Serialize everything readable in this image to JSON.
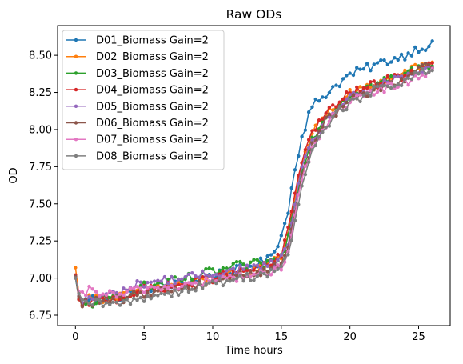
{
  "chart_data": {
    "type": "line",
    "title": "Raw ODs",
    "xlabel": "Time hours",
    "ylabel": "OD",
    "xlim": [
      -1.3,
      27.3
    ],
    "ylim": [
      6.68,
      8.7
    ],
    "xticks": [
      0,
      5,
      10,
      15,
      20,
      25
    ],
    "yticks": [
      6.75,
      7.0,
      7.25,
      7.5,
      7.75,
      8.0,
      8.25,
      8.5
    ],
    "ytick_labels": [
      "6.75",
      "7.00",
      "7.25",
      "7.50",
      "7.75",
      "8.00",
      "8.25",
      "8.50"
    ],
    "grid": false,
    "legend_position": "top-left",
    "x_start": 0,
    "x_end": 26,
    "sample_step": 0.25,
    "series": [
      {
        "name": "D01_Biomass Gain=2",
        "color": "#1f77b4",
        "anchors": [
          [
            0,
            7.0
          ],
          [
            0.3,
            6.82
          ],
          [
            1,
            6.86
          ],
          [
            3,
            6.87
          ],
          [
            5,
            6.93
          ],
          [
            8,
            6.97
          ],
          [
            10,
            7.02
          ],
          [
            12,
            7.06
          ],
          [
            14,
            7.12
          ],
          [
            15,
            7.28
          ],
          [
            15.5,
            7.45
          ],
          [
            16,
            7.75
          ],
          [
            16.5,
            7.95
          ],
          [
            17,
            8.1
          ],
          [
            17.5,
            8.18
          ],
          [
            18,
            8.22
          ],
          [
            19,
            8.3
          ],
          [
            20,
            8.37
          ],
          [
            22,
            8.44
          ],
          [
            24,
            8.5
          ],
          [
            25,
            8.55
          ],
          [
            26,
            8.57
          ]
        ],
        "noise": 0.03
      },
      {
        "name": "D02_Biomass Gain=2",
        "color": "#ff7f0e",
        "anchors": [
          [
            0,
            7.07
          ],
          [
            0.3,
            6.85
          ],
          [
            1,
            6.86
          ],
          [
            3,
            6.87
          ],
          [
            5,
            6.93
          ],
          [
            8,
            6.96
          ],
          [
            10,
            7.0
          ],
          [
            12,
            7.04
          ],
          [
            14,
            7.08
          ],
          [
            15,
            7.15
          ],
          [
            15.5,
            7.3
          ],
          [
            16,
            7.55
          ],
          [
            16.5,
            7.78
          ],
          [
            17,
            7.92
          ],
          [
            17.5,
            8.0
          ],
          [
            18,
            8.08
          ],
          [
            19,
            8.16
          ],
          [
            20,
            8.24
          ],
          [
            22,
            8.31
          ],
          [
            24,
            8.38
          ],
          [
            25,
            8.42
          ],
          [
            26,
            8.45
          ]
        ],
        "noise": 0.03
      },
      {
        "name": "D03_Biomass Gain=2",
        "color": "#2ca02c",
        "anchors": [
          [
            0,
            7.01
          ],
          [
            0.3,
            6.8
          ],
          [
            1,
            6.83
          ],
          [
            3,
            6.87
          ],
          [
            5,
            6.94
          ],
          [
            8,
            6.99
          ],
          [
            10,
            7.04
          ],
          [
            12,
            7.08
          ],
          [
            14,
            7.1
          ],
          [
            15,
            7.14
          ],
          [
            15.5,
            7.28
          ],
          [
            16,
            7.52
          ],
          [
            16.5,
            7.74
          ],
          [
            17,
            7.88
          ],
          [
            17.5,
            7.98
          ],
          [
            18,
            8.06
          ],
          [
            19,
            8.15
          ],
          [
            20,
            8.24
          ],
          [
            22,
            8.31
          ],
          [
            24,
            8.37
          ],
          [
            25,
            8.41
          ],
          [
            26,
            8.45
          ]
        ],
        "noise": 0.035
      },
      {
        "name": "D04_Biomass Gain=2",
        "color": "#d62728",
        "anchors": [
          [
            0,
            7.02
          ],
          [
            0.3,
            6.8
          ],
          [
            1,
            6.84
          ],
          [
            3,
            6.86
          ],
          [
            5,
            6.92
          ],
          [
            8,
            6.96
          ],
          [
            10,
            7.0
          ],
          [
            12,
            7.04
          ],
          [
            14,
            7.08
          ],
          [
            15,
            7.15
          ],
          [
            15.5,
            7.32
          ],
          [
            16,
            7.58
          ],
          [
            16.5,
            7.8
          ],
          [
            17,
            7.93
          ],
          [
            17.5,
            8.02
          ],
          [
            18,
            8.08
          ],
          [
            19,
            8.17
          ],
          [
            20,
            8.24
          ],
          [
            22,
            8.31
          ],
          [
            24,
            8.37
          ],
          [
            25,
            8.4
          ],
          [
            26,
            8.43
          ]
        ],
        "noise": 0.03
      },
      {
        "name": "D05_Biomass Gain=2",
        "color": "#9467bd",
        "anchors": [
          [
            0,
            7.01
          ],
          [
            0.3,
            6.83
          ],
          [
            1,
            6.86
          ],
          [
            3,
            6.9
          ],
          [
            5,
            6.97
          ],
          [
            8,
            7.0
          ],
          [
            10,
            7.03
          ],
          [
            12,
            7.06
          ],
          [
            14,
            7.08
          ],
          [
            15,
            7.13
          ],
          [
            15.5,
            7.25
          ],
          [
            16,
            7.5
          ],
          [
            16.5,
            7.72
          ],
          [
            17,
            7.86
          ],
          [
            17.5,
            7.96
          ],
          [
            18,
            8.04
          ],
          [
            19,
            8.13
          ],
          [
            20,
            8.21
          ],
          [
            22,
            8.29
          ],
          [
            24,
            8.35
          ],
          [
            25,
            8.38
          ],
          [
            26,
            8.42
          ]
        ],
        "noise": 0.03
      },
      {
        "name": "D06_Biomass Gain=2",
        "color": "#8c564b",
        "anchors": [
          [
            0,
            7.01
          ],
          [
            0.3,
            6.82
          ],
          [
            1,
            6.84
          ],
          [
            3,
            6.85
          ],
          [
            5,
            6.9
          ],
          [
            8,
            6.94
          ],
          [
            10,
            6.98
          ],
          [
            12,
            7.02
          ],
          [
            14,
            7.05
          ],
          [
            15,
            7.1
          ],
          [
            15.5,
            7.22
          ],
          [
            16,
            7.45
          ],
          [
            16.5,
            7.68
          ],
          [
            17,
            7.84
          ],
          [
            17.5,
            7.94
          ],
          [
            18,
            8.03
          ],
          [
            19,
            8.12
          ],
          [
            20,
            8.2
          ],
          [
            22,
            8.28
          ],
          [
            24,
            8.35
          ],
          [
            25,
            8.4
          ],
          [
            26,
            8.44
          ]
        ],
        "noise": 0.03
      },
      {
        "name": "D07_Biomass Gain=2",
        "color": "#e377c2",
        "anchors": [
          [
            0,
            7.0
          ],
          [
            0.3,
            6.86
          ],
          [
            1,
            6.92
          ],
          [
            3,
            6.88
          ],
          [
            5,
            6.93
          ],
          [
            8,
            6.95
          ],
          [
            10,
            6.98
          ],
          [
            12,
            7.01
          ],
          [
            14,
            7.03
          ],
          [
            15,
            7.08
          ],
          [
            15.5,
            7.18
          ],
          [
            16,
            7.42
          ],
          [
            16.5,
            7.65
          ],
          [
            17,
            7.8
          ],
          [
            17.5,
            7.92
          ],
          [
            18,
            8.01
          ],
          [
            19,
            8.1
          ],
          [
            20,
            8.18
          ],
          [
            22,
            8.26
          ],
          [
            24,
            8.32
          ],
          [
            25,
            8.36
          ],
          [
            26,
            8.4
          ]
        ],
        "noise": 0.03
      },
      {
        "name": "D08_Biomass Gain=2",
        "color": "#7f7f7f",
        "anchors": [
          [
            0,
            7.0
          ],
          [
            0.3,
            6.84
          ],
          [
            1,
            6.83
          ],
          [
            3,
            6.82
          ],
          [
            5,
            6.87
          ],
          [
            8,
            6.92
          ],
          [
            10,
            6.96
          ],
          [
            12,
            7.0
          ],
          [
            14,
            7.03
          ],
          [
            15,
            7.07
          ],
          [
            15.5,
            7.15
          ],
          [
            16,
            7.38
          ],
          [
            16.5,
            7.62
          ],
          [
            17,
            7.78
          ],
          [
            17.5,
            7.9
          ],
          [
            18,
            8.0
          ],
          [
            19,
            8.1
          ],
          [
            20,
            8.18
          ],
          [
            22,
            8.27
          ],
          [
            24,
            8.33
          ],
          [
            25,
            8.37
          ],
          [
            26,
            8.41
          ]
        ],
        "noise": 0.03
      }
    ]
  }
}
